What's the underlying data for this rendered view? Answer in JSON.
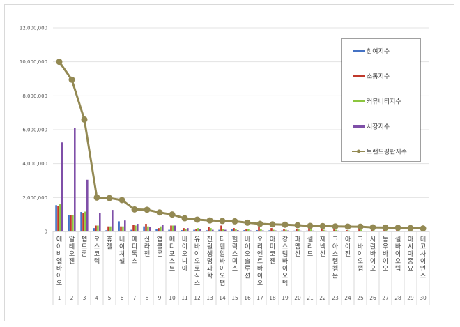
{
  "chart_data": {
    "type": "bar",
    "title": "",
    "xlabel": "",
    "ylabel": "",
    "ylim": [
      0,
      12000000
    ],
    "yticks": [
      "0",
      "2,000,000",
      "4,000,000",
      "6,000,000",
      "8,000,000",
      "10,000,000",
      "12,000,000"
    ],
    "grid": true,
    "legend_position": "right",
    "ranks": [
      "1",
      "2",
      "3",
      "4",
      "5",
      "6",
      "7",
      "8",
      "9",
      "10",
      "11",
      "12",
      "13",
      "14",
      "15",
      "16",
      "17",
      "18",
      "19",
      "20",
      "21",
      "22",
      "23",
      "24",
      "25",
      "26",
      "27",
      "28",
      "29",
      "30"
    ],
    "categories": [
      "에이비엘바이오",
      "알테오젠",
      "펩트론",
      "오스코텍",
      "휴젤",
      "네이처셀",
      "메디톡스",
      "신라젠",
      "앱클론",
      "메디포스트",
      "바이오니아",
      "유바이오로직스",
      "진원생명과학",
      "티앤알바이오팹",
      "헬릭스미스",
      "바이오솔루션",
      "오리엔트바이오",
      "아미코젠",
      "강스템바이오텍",
      "파멥신",
      "셀리드",
      "제넥신",
      "코아스템켐온",
      "아이진",
      "고바이오랩",
      "서린바이오",
      "농우바이오",
      "셀바이오텍",
      "아시아종묘",
      "테고사이언스"
    ],
    "series": [
      {
        "name": "참여지수",
        "type": "bar",
        "color": "#4472c4",
        "values": [
          1550000,
          950000,
          1150000,
          200000,
          70000,
          600000,
          100000,
          300000,
          150000,
          100000,
          80000,
          100000,
          70000,
          100000,
          120000,
          80000,
          80000,
          70000,
          60000,
          50000,
          50000,
          40000,
          40000,
          40000,
          40000,
          30000,
          30000,
          30000,
          30000,
          30000
        ]
      },
      {
        "name": "소통지수",
        "type": "bar",
        "color": "#c0392b",
        "values": [
          1500000,
          970000,
          1100000,
          350000,
          300000,
          300000,
          400000,
          450000,
          200000,
          350000,
          200000,
          150000,
          250000,
          350000,
          200000,
          120000,
          300000,
          200000,
          150000,
          150000,
          200000,
          150000,
          120000,
          80000,
          150000,
          100000,
          120000,
          100000,
          100000,
          80000
        ]
      },
      {
        "name": "커뮤니티지수",
        "type": "bar",
        "color": "#8cc63f",
        "values": [
          1600000,
          970000,
          1170000,
          350000,
          300000,
          300000,
          350000,
          300000,
          300000,
          350000,
          150000,
          200000,
          200000,
          150000,
          150000,
          150000,
          150000,
          100000,
          100000,
          120000,
          120000,
          100000,
          100000,
          60000,
          100000,
          60000,
          60000,
          60000,
          50000,
          50000
        ]
      },
      {
        "name": "시장지수",
        "type": "bar",
        "color": "#7f4fa8",
        "values": [
          5250000,
          6100000,
          3050000,
          1100000,
          1270000,
          650000,
          450000,
          250000,
          400000,
          350000,
          200000,
          150000,
          100000,
          100000,
          80000,
          60000,
          60000,
          60000,
          60000,
          50000,
          50000,
          50000,
          50000,
          40000,
          40000,
          40000,
          40000,
          30000,
          30000,
          30000
        ]
      },
      {
        "name": "브랜드평판지수",
        "type": "line",
        "color": "#938953",
        "values": [
          10000000,
          8950000,
          6600000,
          2000000,
          1970000,
          1850000,
          1300000,
          1280000,
          1120000,
          1000000,
          780000,
          700000,
          650000,
          620000,
          600000,
          520000,
          450000,
          420000,
          400000,
          370000,
          330000,
          320000,
          300000,
          290000,
          280000,
          240000,
          230000,
          220000,
          200000,
          180000
        ]
      }
    ]
  }
}
